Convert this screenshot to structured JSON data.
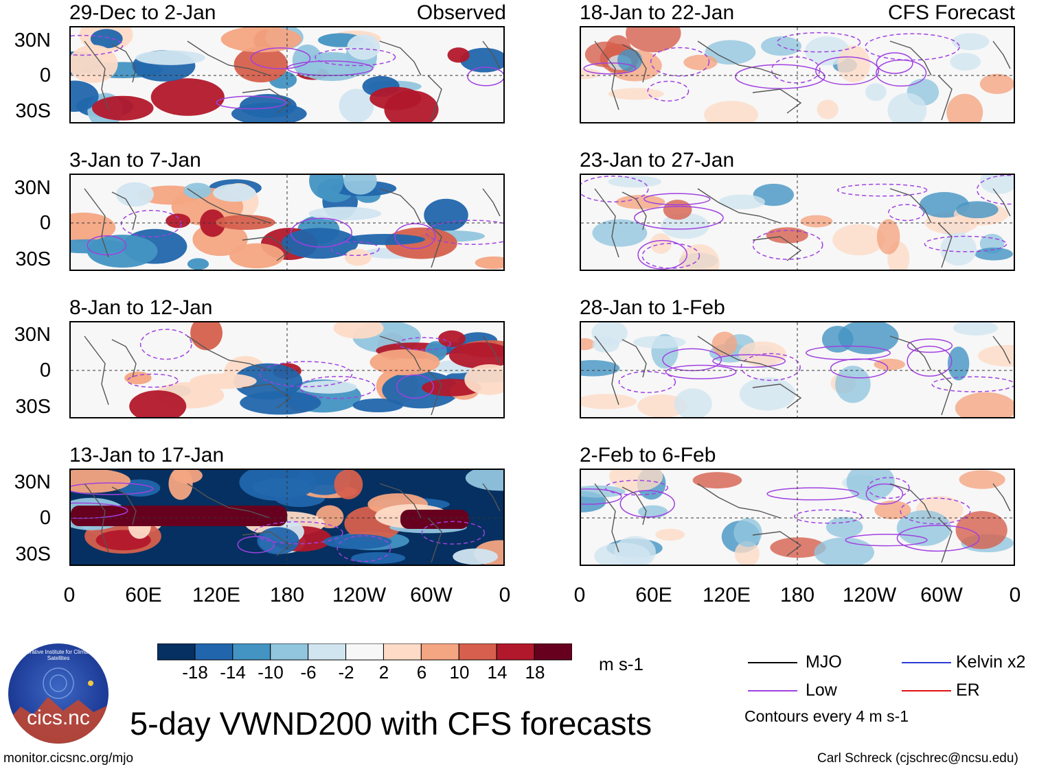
{
  "header": {
    "observed_label": "Observed",
    "forecast_label": "CFS Forecast"
  },
  "panels": {
    "left": [
      {
        "title": "29-Dec to 2-Jan"
      },
      {
        "title": "3-Jan to 7-Jan"
      },
      {
        "title": "8-Jan to 12-Jan"
      },
      {
        "title": "13-Jan to 17-Jan"
      }
    ],
    "right": [
      {
        "title": "18-Jan to 22-Jan"
      },
      {
        "title": "23-Jan to 27-Jan"
      },
      {
        "title": "28-Jan to 1-Feb"
      },
      {
        "title": "2-Feb to 6-Feb"
      }
    ]
  },
  "axes": {
    "lat_labels": [
      "30N",
      "0",
      "30S"
    ],
    "lon_labels": [
      "0",
      "60E",
      "120E",
      "180",
      "120W",
      "60W",
      "0"
    ]
  },
  "colorbar": {
    "labels": [
      "-18",
      "-14",
      "-10",
      "-6",
      "-2",
      "2",
      "6",
      "10",
      "14",
      "18"
    ],
    "colors": [
      "#053061",
      "#2166ac",
      "#4393c3",
      "#92c5de",
      "#d1e5f0",
      "#f7f7f7",
      "#fddbc7",
      "#f4a582",
      "#d6604d",
      "#b2182b",
      "#67001f"
    ],
    "units": "m s-1"
  },
  "legend": {
    "items": [
      {
        "label": "MJO",
        "color": "#000000"
      },
      {
        "label": "Kelvin x2",
        "color": "#2b3bd6"
      },
      {
        "label": "Low",
        "color": "#a040e0"
      },
      {
        "label": "ER",
        "color": "#e01010"
      }
    ],
    "note": "Contours every 4 m s-1"
  },
  "title": "5-day VWND200 with CFS forecasts",
  "logo": {
    "text": "cics.nc",
    "ring_text": "Cooperative Institute for Climate and Satellites"
  },
  "footer": {
    "url": "monitor.cicsnc.org/mjo",
    "credit": "Carl Schreck (cjschrec@ncsu.edu)"
  }
}
